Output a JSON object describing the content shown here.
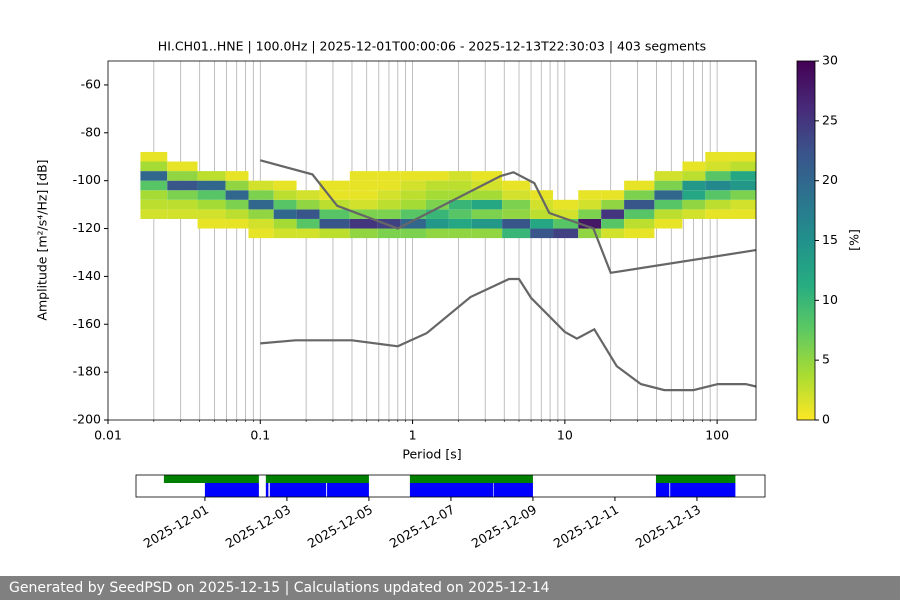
{
  "chart_data": [
    {
      "type": "heatmap",
      "title": "HI.CH01..HNE | 100.0Hz | 2025-12-01T00:00:06 - 2025-12-13T22:30:03 | 403 segments",
      "xlabel": "Period [s]",
      "ylabel": "Amplitude [m²/s⁴/Hz] [dB]",
      "xscale": "log",
      "grid": "x",
      "xlim": [
        0.01,
        180
      ],
      "ylim": [
        -200,
        -50
      ],
      "xticks": [
        0.01,
        0.1,
        1,
        10,
        100
      ],
      "xminorticks": [
        0.02,
        0.03,
        0.04,
        0.05,
        0.06,
        0.07,
        0.08,
        0.09,
        0.2,
        0.3,
        0.4,
        0.5,
        0.6,
        0.7,
        0.8,
        0.9,
        2,
        3,
        4,
        5,
        6,
        7,
        8,
        9,
        20,
        30,
        40,
        50,
        60,
        70,
        80,
        90
      ],
      "yticks": [
        -200,
        -180,
        -160,
        -140,
        -120,
        -100,
        -80,
        -60
      ],
      "x": [
        0.02,
        0.03,
        0.05,
        0.07,
        0.1,
        0.15,
        0.2,
        0.3,
        0.5,
        0.7,
        1,
        1.5,
        2,
        3,
        5,
        7,
        10,
        15,
        20,
        30,
        50,
        70,
        100,
        150
      ],
      "bins": [
        -124,
        -120,
        -116,
        -112,
        -108,
        -104,
        -100,
        -96,
        -92,
        -88
      ],
      "z": [
        [
          0,
          0,
          2,
          3,
          4,
          8,
          20,
          4,
          1
        ],
        [
          0,
          0,
          2,
          3,
          6,
          22,
          5,
          1,
          0
        ],
        [
          0,
          1,
          2,
          4,
          8,
          20,
          3,
          0,
          0
        ],
        [
          0,
          1,
          3,
          6,
          20,
          5,
          1,
          0,
          0
        ],
        [
          1,
          2,
          5,
          20,
          6,
          2,
          0,
          0,
          0
        ],
        [
          2,
          4,
          20,
          8,
          3,
          1,
          0,
          0,
          0
        ],
        [
          2,
          8,
          22,
          5,
          2,
          0,
          0,
          0,
          0
        ],
        [
          3,
          22,
          8,
          3,
          1,
          1,
          0,
          0,
          0
        ],
        [
          5,
          25,
          6,
          2,
          1,
          1,
          1,
          0,
          0
        ],
        [
          6,
          24,
          6,
          3,
          2,
          1,
          1,
          0,
          0
        ],
        [
          6,
          20,
          8,
          4,
          3,
          2,
          1,
          0,
          0
        ],
        [
          5,
          14,
          10,
          6,
          4,
          3,
          1,
          0,
          0
        ],
        [
          5,
          12,
          8,
          10,
          4,
          3,
          2,
          0,
          0
        ],
        [
          5,
          14,
          6,
          12,
          4,
          2,
          1,
          0,
          0
        ],
        [
          10,
          22,
          5,
          6,
          2,
          1,
          0,
          0,
          0
        ],
        [
          22,
          12,
          3,
          2,
          1,
          0,
          0,
          0,
          0
        ],
        [
          24,
          8,
          2,
          1,
          0,
          0,
          0,
          0,
          0
        ],
        [
          5,
          28,
          6,
          2,
          1,
          0,
          0,
          0,
          0
        ],
        [
          2,
          8,
          25,
          5,
          1,
          0,
          0,
          0,
          0
        ],
        [
          1,
          3,
          8,
          22,
          6,
          1,
          0,
          0,
          0
        ],
        [
          0,
          1,
          3,
          8,
          20,
          6,
          2,
          0,
          0
        ],
        [
          0,
          0,
          2,
          5,
          12,
          14,
          3,
          1,
          0
        ],
        [
          0,
          0,
          1,
          3,
          8,
          16,
          8,
          2,
          1
        ],
        [
          0,
          0,
          1,
          2,
          6,
          14,
          12,
          3,
          1
        ]
      ],
      "colorbar": {
        "colormap": "viridis_r",
        "clim": [
          0,
          30
        ],
        "ticks": [
          0,
          5,
          10,
          15,
          20,
          25,
          30
        ],
        "label": "[%]"
      },
      "lines": [
        {
          "color": "#666666",
          "x": [
            0.1,
            0.22,
            0.32,
            0.8,
            3.8,
            4.6,
            6.3,
            7.9,
            15.4,
            20,
            180
          ],
          "values": [
            -91.5,
            -97.4,
            -110.5,
            -120,
            -98,
            -96.5,
            -101,
            -113.5,
            -120,
            -138.5,
            -129
          ]
        },
        {
          "color": "#666666",
          "x": [
            0.1,
            0.17,
            0.4,
            0.8,
            1.24,
            2.4,
            4.3,
            5,
            6,
            10,
            12,
            15.6,
            21.9,
            31.6,
            45,
            70,
            101,
            154,
            180
          ],
          "values": [
            -168,
            -166.7,
            -166.7,
            -169.2,
            -163.7,
            -148.6,
            -141.1,
            -141.1,
            -149,
            -163.2,
            -166,
            -162.1,
            -177.5,
            -185,
            -187.5,
            -187.5,
            -185,
            -185,
            -186
          ]
        }
      ]
    },
    {
      "type": "timeline",
      "xlim": [
        "2025-11-29T07:40",
        "2025-12-14T15:50"
      ],
      "xticks": [
        "2025-12-01",
        "2025-12-03",
        "2025-12-05",
        "2025-12-07",
        "2025-12-09",
        "2025-12-11",
        "2025-12-13"
      ],
      "series": [
        {
          "color": "green",
          "intervals": [
            [
              "2025-11-30T00:00",
              "2025-12-02T07:36"
            ],
            [
              "2025-12-02T11:40",
              "2025-12-05T00:00"
            ],
            [
              "2025-12-06T00:00",
              "2025-12-09T00:00"
            ],
            [
              "2025-12-12T00:00",
              "2025-12-13T22:30"
            ]
          ]
        },
        {
          "color": "blue",
          "intervals": [
            [
              "2025-12-01T00:00",
              "2025-12-02T07:36"
            ],
            [
              "2025-12-02T11:40",
              "2025-12-02T13:10"
            ],
            [
              "2025-12-02T14:00",
              "2025-12-03T23:00"
            ],
            [
              "2025-12-03T23:30",
              "2025-12-05T00:00"
            ],
            [
              "2025-12-06T00:00",
              "2025-12-08T00:50"
            ],
            [
              "2025-12-08T01:10",
              "2025-12-09T00:00"
            ],
            [
              "2025-12-12T00:00",
              "2025-12-12T07:50"
            ],
            [
              "2025-12-12T08:20",
              "2025-12-13T22:30"
            ]
          ]
        }
      ]
    }
  ],
  "footer": {
    "text": "Generated by SeedPSD on 2025-12-15 | Calculations updated on 2025-12-14"
  }
}
